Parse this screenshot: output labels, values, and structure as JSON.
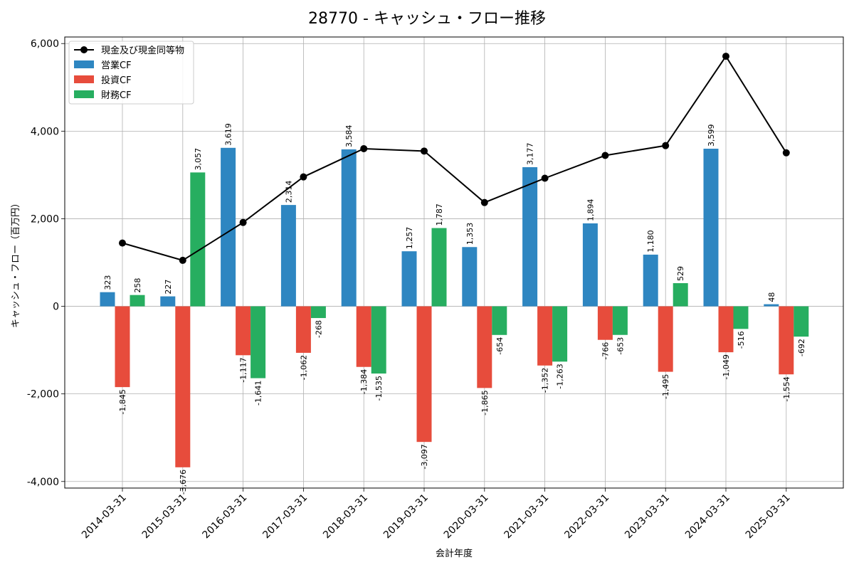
{
  "chart_data": {
    "type": "bar",
    "title": "28770 - キャッシュ・フロー推移",
    "xlabel": "会計年度",
    "ylabel": "キャッシュ・フロー（百万円）",
    "ylim": [
      -4150,
      6150
    ],
    "yticks": [
      -4000,
      -2000,
      0,
      2000,
      4000,
      6000
    ],
    "ytick_labels": [
      "-4,000",
      "-2,000",
      "0",
      "2,000",
      "4,000",
      "6,000"
    ],
    "grid": true,
    "legend_position": "top-left",
    "categories": [
      "2014-03-31",
      "2015-03-31",
      "2016-03-31",
      "2017-03-31",
      "2018-03-31",
      "2019-03-31",
      "2020-03-31",
      "2021-03-31",
      "2022-03-31",
      "2023-03-31",
      "2024-03-31",
      "2025-03-31"
    ],
    "series": [
      {
        "name": "営業CF",
        "kind": "bar",
        "color": "#2e86c1",
        "values": [
          323,
          227,
          3619,
          2314,
          3584,
          1257,
          1353,
          3177,
          1894,
          1180,
          3599,
          48
        ],
        "labels": [
          "323",
          "227",
          "3,619",
          "2,314",
          "3,584",
          "1,257",
          "1,353",
          "3,177",
          "1,894",
          "1,180",
          "3,599",
          "48"
        ]
      },
      {
        "name": "投資CF",
        "kind": "bar",
        "color": "#e74c3c",
        "values": [
          -1845,
          -3676,
          -1117,
          -1062,
          -1384,
          -3097,
          -1865,
          -1352,
          -766,
          -1495,
          -1049,
          -1554
        ],
        "labels": [
          "-1,845",
          "-3,676",
          "-1,117",
          "-1,062",
          "-1,384",
          "-3,097",
          "-1,865",
          "-1,352",
          "-766",
          "-1,495",
          "-1,049",
          "-1,554"
        ]
      },
      {
        "name": "財務CF",
        "kind": "bar",
        "color": "#27ae60",
        "values": [
          258,
          3057,
          -1641,
          -268,
          -1535,
          1787,
          -654,
          -1263,
          -653,
          529,
          -516,
          -692
        ],
        "labels": [
          "258",
          "3,057",
          "-1,641",
          "-268",
          "-1,535",
          "1,787",
          "-654",
          "-1,263",
          "-653",
          "529",
          "-516",
          "-692"
        ]
      }
    ],
    "line_series": {
      "name": "現金及び現金同等物",
      "kind": "line",
      "color": "#000000",
      "values": [
        1445,
        1050,
        1915,
        2955,
        3600,
        3545,
        2370,
        2925,
        3445,
        3670,
        5710,
        3505
      ]
    }
  }
}
